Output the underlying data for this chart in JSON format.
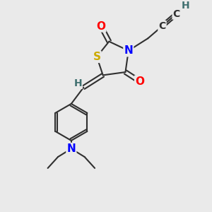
{
  "bg_color": "#eaeaea",
  "atom_colors": {
    "S": "#ccaa00",
    "N": "#0000ff",
    "O": "#ff0000",
    "C": "#303030",
    "H": "#407070"
  },
  "bond_color": "#303030",
  "line_width": 1.5,
  "font_size": 10,
  "figsize": [
    3.0,
    3.0
  ],
  "dpi": 100
}
